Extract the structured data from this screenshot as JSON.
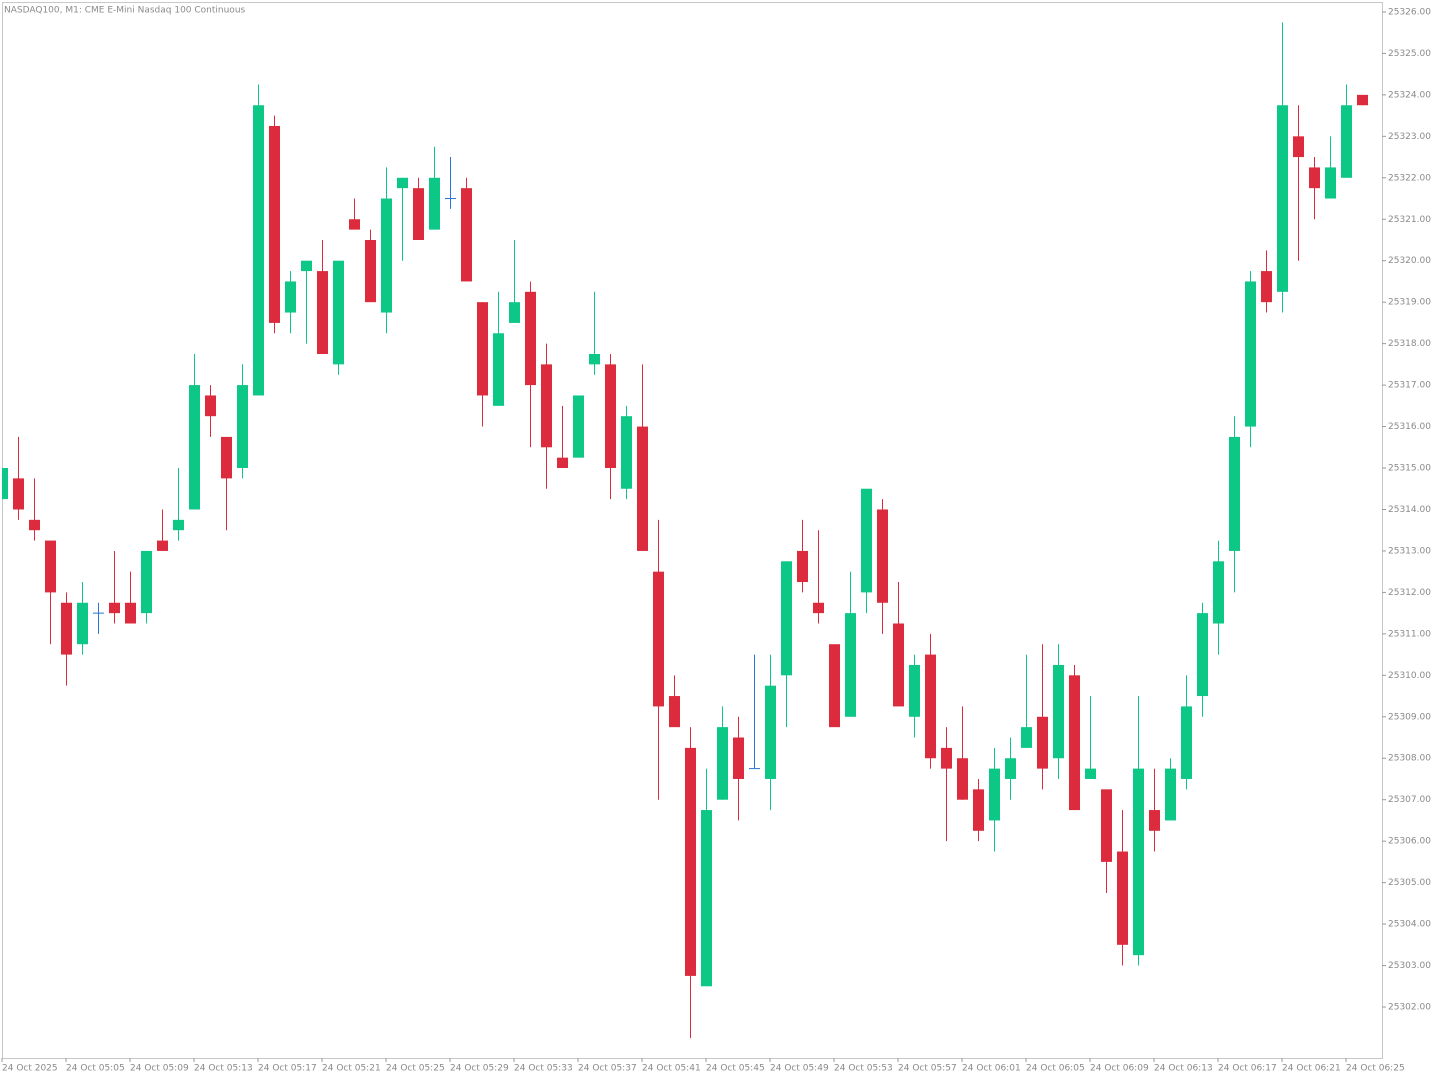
{
  "chart_data": {
    "type": "candlestick",
    "title": "NASDAQ100, M1:  CME E-Mini Nasdaq 100 Continuous",
    "categories": [
      "24 Oct 2025",
      null,
      null,
      null,
      "24 Oct 05:05",
      null,
      null,
      null,
      "24 Oct 05:09",
      null,
      null,
      null,
      "24 Oct 05:13",
      null,
      null,
      null,
      "24 Oct 05:17",
      null,
      null,
      null,
      "24 Oct 05:21",
      null,
      null,
      null,
      "24 Oct 05:25",
      null,
      null,
      null,
      "24 Oct 05:29",
      null,
      null,
      null,
      "24 Oct 05:33",
      null,
      null,
      null,
      "24 Oct 05:37",
      null,
      null,
      null,
      "24 Oct 05:41",
      null,
      null,
      null,
      "24 Oct 05:45",
      null,
      null,
      null,
      "24 Oct 05:49",
      null,
      null,
      null,
      "24 Oct 05:53",
      null,
      null,
      null,
      "24 Oct 05:57",
      null,
      null,
      null,
      "24 Oct 06:01",
      null,
      null,
      null,
      "24 Oct 06:05",
      null,
      null,
      null,
      "24 Oct 06:09",
      null,
      null,
      null,
      "24 Oct 06:13",
      null,
      null,
      null,
      "24 Oct 06:17",
      null,
      null,
      null,
      "24 Oct 06:21",
      null,
      null,
      null,
      "24 Oct 06:25",
      null
    ],
    "open": [
      25314.25,
      25314.75,
      25313.75,
      25313.25,
      25311.75,
      25310.75,
      25311.5,
      25311.75,
      25311.75,
      25311.5,
      25313.25,
      25313.5,
      25314.0,
      25316.75,
      25315.75,
      25315.0,
      25316.75,
      25323.25,
      25318.75,
      25319.75,
      25319.75,
      25317.5,
      25321.0,
      25320.5,
      25318.75,
      25321.75,
      25321.75,
      25320.75,
      25321.5,
      25321.75,
      25319.0,
      25316.5,
      25318.5,
      25319.25,
      25317.5,
      25315.25,
      25315.25,
      25317.5,
      25317.5,
      25314.5,
      25316.0,
      25312.5,
      25309.5,
      25308.25,
      25302.5,
      25307.0,
      25308.5,
      25307.75,
      25307.5,
      25310.0,
      25313.0,
      25311.75,
      25310.75,
      25309.0,
      25312.0,
      25314.0,
      25311.25,
      25309.0,
      25310.5,
      25308.25,
      25308.0,
      25307.25,
      25306.5,
      25307.5,
      25308.25,
      25309.0,
      25308.0,
      25310.0,
      25307.5,
      25307.25,
      25305.75,
      25303.25,
      25306.75,
      25306.5,
      25307.5,
      25309.5,
      25311.25,
      25313.0,
      25316.0,
      25319.75,
      25319.25,
      25323.0,
      25322.25,
      25321.5,
      25322.0,
      25324.0
    ],
    "high": [
      25315.0,
      25315.75,
      25314.75,
      25313.25,
      25312.0,
      25312.25,
      25311.75,
      25313.0,
      25312.5,
      25313.0,
      25314.0,
      25315.0,
      25317.75,
      25317.0,
      25315.75,
      25317.5,
      25324.25,
      25323.5,
      25319.75,
      25320.0,
      25320.5,
      25320.0,
      25321.5,
      25320.75,
      25322.25,
      25322.0,
      25322.0,
      25322.75,
      25322.5,
      25322.0,
      25319.0,
      25319.25,
      25320.5,
      25319.5,
      25318.0,
      25316.5,
      25316.75,
      25319.25,
      25317.75,
      25316.5,
      25317.5,
      25313.75,
      25310.0,
      25308.75,
      25307.75,
      25309.25,
      25309.0,
      25310.5,
      25310.5,
      25312.75,
      25313.75,
      25313.5,
      25310.75,
      25312.5,
      25314.5,
      25314.25,
      25312.25,
      25310.5,
      25311.0,
      25308.75,
      25309.25,
      25307.5,
      25308.25,
      25308.5,
      25310.5,
      25310.75,
      25310.75,
      25310.25,
      25309.5,
      25307.25,
      25306.75,
      25309.5,
      25307.75,
      25308.0,
      25310.0,
      25311.75,
      25313.25,
      25316.25,
      25319.75,
      25320.25,
      25325.75,
      25323.75,
      25322.5,
      25323.0,
      25324.25,
      25324.0
    ],
    "low": [
      25314.25,
      25313.75,
      25313.25,
      25310.75,
      25309.75,
      25310.5,
      25311.0,
      25311.25,
      25311.25,
      25311.25,
      25313.0,
      25313.25,
      25314.0,
      25315.75,
      25313.5,
      25314.75,
      25316.75,
      25318.25,
      25318.25,
      25318.0,
      25317.75,
      25317.25,
      25320.75,
      25319.0,
      25318.25,
      25320.0,
      25320.5,
      25320.75,
      25321.25,
      25319.5,
      25316.0,
      25316.5,
      25318.5,
      25315.5,
      25314.5,
      25315.0,
      25315.25,
      25317.25,
      25314.25,
      25314.25,
      25313.0,
      25307.0,
      25308.75,
      25301.25,
      25302.5,
      25307.0,
      25306.5,
      25307.75,
      25306.75,
      25308.75,
      25312.0,
      25311.25,
      25308.75,
      25309.0,
      25311.5,
      25311.0,
      25309.25,
      25308.5,
      25307.75,
      25306.0,
      25307.0,
      25306.0,
      25305.75,
      25307.0,
      25308.25,
      25307.25,
      25307.5,
      25306.75,
      25307.5,
      25304.75,
      25303.0,
      25303.0,
      25305.75,
      25306.5,
      25307.25,
      25309.0,
      25310.5,
      25312.0,
      25315.5,
      25318.75,
      25318.75,
      25320.0,
      25321.0,
      25321.5,
      25322.0,
      25323.75
    ],
    "close": [
      25315.0,
      25314.0,
      25313.5,
      25312.0,
      25310.5,
      25311.75,
      25311.5,
      25311.5,
      25311.25,
      25313.0,
      25313.0,
      25313.75,
      25317.0,
      25316.25,
      25314.75,
      25317.0,
      25323.75,
      25318.5,
      25319.5,
      25320.0,
      25317.75,
      25320.0,
      25320.75,
      25319.0,
      25321.5,
      25322.0,
      25320.5,
      25322.0,
      25321.5,
      25319.5,
      25316.75,
      25318.25,
      25319.0,
      25317.0,
      25315.5,
      25315.0,
      25316.75,
      25317.75,
      25315.0,
      25316.25,
      25313.0,
      25309.25,
      25308.75,
      25302.75,
      25306.75,
      25308.75,
      25307.5,
      25307.75,
      25309.75,
      25312.75,
      25312.25,
      25311.5,
      25308.75,
      25311.5,
      25314.5,
      25311.75,
      25309.25,
      25310.25,
      25308.0,
      25307.75,
      25307.0,
      25306.25,
      25307.75,
      25308.0,
      25308.75,
      25307.75,
      25310.25,
      25306.75,
      25307.75,
      25305.5,
      25303.5,
      25307.75,
      25306.25,
      25307.75,
      25309.25,
      25311.5,
      25312.75,
      25315.75,
      25319.5,
      25319.0,
      25323.75,
      25322.5,
      25321.75,
      25322.25,
      25323.75,
      25323.75
    ],
    "up_color": "#0cc785",
    "down_color": "#dc2b3c",
    "doji_color": "#2a74d6",
    "ylim": [
      25300.77,
      25326.24
    ],
    "yticks": [
      {
        "value": 25302,
        "label": "25302.00"
      },
      {
        "value": 25303,
        "label": "25303.00"
      },
      {
        "value": 25304,
        "label": "25304.00"
      },
      {
        "value": 25305,
        "label": "25305.00"
      },
      {
        "value": 25306,
        "label": "25306.00"
      },
      {
        "value": 25307,
        "label": "25307.00"
      },
      {
        "value": 25308,
        "label": "25308.00"
      },
      {
        "value": 25309,
        "label": "25309.00"
      },
      {
        "value": 25310,
        "label": "25310.00"
      },
      {
        "value": 25311,
        "label": "25311.00"
      },
      {
        "value": 25312,
        "label": "25312.00"
      },
      {
        "value": 25313,
        "label": "25313.00"
      },
      {
        "value": 25314,
        "label": "25314.00"
      },
      {
        "value": 25315,
        "label": "25315.00"
      },
      {
        "value": 25316,
        "label": "25316.00"
      },
      {
        "value": 25317,
        "label": "25317.00"
      },
      {
        "value": 25318,
        "label": "25318.00"
      },
      {
        "value": 25319,
        "label": "25319.00"
      },
      {
        "value": 25320,
        "label": "25320.00"
      },
      {
        "value": 25321,
        "label": "25321.00"
      },
      {
        "value": 25322,
        "label": "25322.00"
      },
      {
        "value": 25323,
        "label": "25323.00"
      },
      {
        "value": 25324,
        "label": "25324.00"
      },
      {
        "value": 25325,
        "label": "25325.00"
      },
      {
        "value": 25326,
        "label": "25326.00"
      }
    ]
  }
}
